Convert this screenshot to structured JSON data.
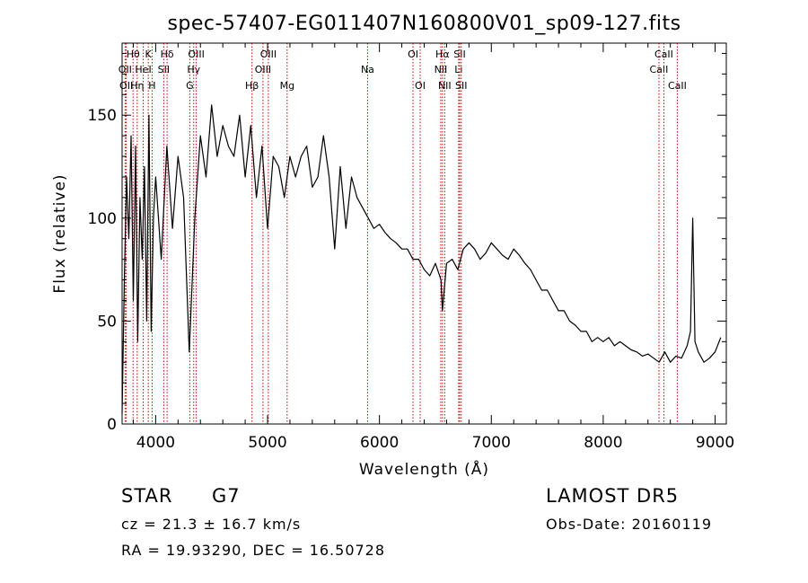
{
  "chart_data": {
    "type": "line",
    "title": "spec-57407-EG011407N160800V01_sp09-127.fits",
    "xlabel": "Wavelength (Å)",
    "ylabel": "Flux (relative)",
    "xlim": [
      3700,
      9100
    ],
    "ylim": [
      0,
      185
    ],
    "xticks": [
      4000,
      5000,
      6000,
      7000,
      8000,
      9000
    ],
    "yticks": [
      0,
      50,
      100,
      150
    ],
    "grid": false,
    "line_color": "#000000",
    "marker_color": "#cc0000",
    "series": [
      {
        "x": [
          3700,
          3720,
          3740,
          3760,
          3780,
          3800,
          3820,
          3840,
          3860,
          3880,
          3900,
          3920,
          3940,
          3960,
          3980,
          4000,
          4050,
          4100,
          4150,
          4200,
          4250,
          4300,
          4350,
          4400,
          4450,
          4500,
          4550,
          4600,
          4650,
          4700,
          4750,
          4800,
          4850,
          4900,
          4950,
          5000,
          5050,
          5100,
          5150,
          5200,
          5250,
          5300,
          5350,
          5400,
          5450,
          5500,
          5550,
          5600,
          5650,
          5700,
          5750,
          5800,
          5850,
          5900,
          5950,
          6000,
          6050,
          6100,
          6150,
          6200,
          6250,
          6300,
          6350,
          6400,
          6450,
          6500,
          6550,
          6563,
          6600,
          6650,
          6700,
          6750,
          6800,
          6850,
          6900,
          6950,
          7000,
          7050,
          7100,
          7150,
          7200,
          7250,
          7300,
          7350,
          7400,
          7450,
          7500,
          7550,
          7600,
          7650,
          7700,
          7750,
          7800,
          7850,
          7900,
          7950,
          8000,
          8050,
          8100,
          8150,
          8200,
          8250,
          8300,
          8350,
          8400,
          8450,
          8500,
          8550,
          8600,
          8650,
          8700,
          8750,
          8780,
          8800,
          8820,
          8850,
          8900,
          8950,
          9000,
          9050
        ],
        "y": [
          5,
          70,
          120,
          90,
          140,
          60,
          135,
          40,
          110,
          80,
          125,
          50,
          150,
          45,
          100,
          120,
          80,
          135,
          95,
          130,
          110,
          35,
          100,
          140,
          120,
          155,
          130,
          145,
          135,
          130,
          150,
          120,
          145,
          110,
          135,
          95,
          130,
          125,
          110,
          130,
          120,
          130,
          135,
          115,
          120,
          140,
          120,
          85,
          125,
          95,
          120,
          110,
          105,
          100,
          95,
          97,
          93,
          90,
          88,
          85,
          85,
          80,
          80,
          75,
          72,
          78,
          70,
          55,
          78,
          80,
          75,
          85,
          88,
          85,
          80,
          83,
          88,
          85,
          82,
          80,
          85,
          82,
          78,
          75,
          70,
          65,
          65,
          60,
          55,
          55,
          50,
          48,
          45,
          45,
          40,
          42,
          40,
          42,
          38,
          40,
          38,
          36,
          35,
          33,
          34,
          32,
          30,
          35,
          30,
          33,
          32,
          38,
          45,
          100,
          40,
          35,
          30,
          32,
          35,
          42
        ]
      }
    ],
    "line_markers": [
      {
        "label": "OII",
        "wavelength": 3727,
        "row": 2
      },
      {
        "label": "OII",
        "wavelength": 3737,
        "row": 3
      },
      {
        "label": "Hθ",
        "wavelength": 3798,
        "row": 1
      },
      {
        "label": "Hη",
        "wavelength": 3835,
        "row": 3
      },
      {
        "label": "HeI",
        "wavelength": 3889,
        "row": 2
      },
      {
        "label": "K",
        "wavelength": 3934,
        "row": 1
      },
      {
        "label": "H",
        "wavelength": 3968,
        "row": 3
      },
      {
        "label": "SII",
        "wavelength": 4072,
        "row": 2
      },
      {
        "label": "Hδ",
        "wavelength": 4102,
        "row": 1
      },
      {
        "label": "Hγ",
        "wavelength": 4340,
        "row": 2
      },
      {
        "label": "G",
        "wavelength": 4305,
        "row": 3
      },
      {
        "label": "OIII",
        "wavelength": 4363,
        "row": 1
      },
      {
        "label": "Hβ",
        "wavelength": 4861,
        "row": 3
      },
      {
        "label": "OIII",
        "wavelength": 4959,
        "row": 2
      },
      {
        "label": "OIII",
        "wavelength": 5007,
        "row": 1
      },
      {
        "label": "Mg",
        "wavelength": 5175,
        "row": 3
      },
      {
        "label": "Na",
        "wavelength": 5894,
        "row": 2
      },
      {
        "label": "OI",
        "wavelength": 6300,
        "row": 1
      },
      {
        "label": "OI",
        "wavelength": 6364,
        "row": 3
      },
      {
        "label": "NII",
        "wavelength": 6548,
        "row": 2
      },
      {
        "label": "Hα",
        "wavelength": 6563,
        "row": 1
      },
      {
        "label": "NII",
        "wavelength": 6583,
        "row": 3
      },
      {
        "label": "Li",
        "wavelength": 6708,
        "row": 2
      },
      {
        "label": "SII",
        "wavelength": 6717,
        "row": 1
      },
      {
        "label": "SII",
        "wavelength": 6731,
        "row": 3
      },
      {
        "label": "CaII",
        "wavelength": 8498,
        "row": 2
      },
      {
        "label": "CaII",
        "wavelength": 8542,
        "row": 1
      },
      {
        "label": "CaII",
        "wavelength": 8662,
        "row": 3
      }
    ]
  },
  "footer": {
    "object_class": "STAR",
    "subclass": "G7",
    "survey": "LAMOST  DR5",
    "redshift": "cz = 21.3 ± 16.7 km/s",
    "obs_date": "Obs-Date: 20160119",
    "coords": "RA =  19.93290, DEC =  16.50728"
  }
}
